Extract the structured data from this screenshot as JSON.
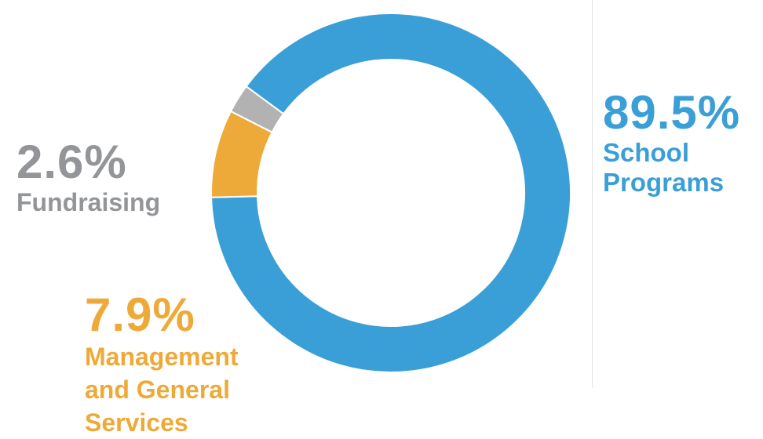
{
  "chart_data": {
    "type": "pie",
    "donut": true,
    "slices": [
      {
        "label": "School Programs",
        "value": 89.5,
        "display": "89.5%",
        "name_lines": [
          "School",
          "Programs"
        ],
        "color": "#3a9fd6"
      },
      {
        "label": "Fundraising",
        "value": 2.6,
        "display": "2.6%",
        "name_lines": [
          "Fundraising"
        ],
        "color": "#b2b2b2"
      },
      {
        "label": "Management and General Services",
        "value": 7.9,
        "display": "7.9%",
        "name_lines": [
          "Management",
          "and General",
          "Services"
        ],
        "color": "#eeaa38"
      }
    ],
    "label_colors": {
      "School Programs": "#3a9fd6",
      "Fundraising": "#939598",
      "Management and General Services": "#eeaa38"
    }
  }
}
